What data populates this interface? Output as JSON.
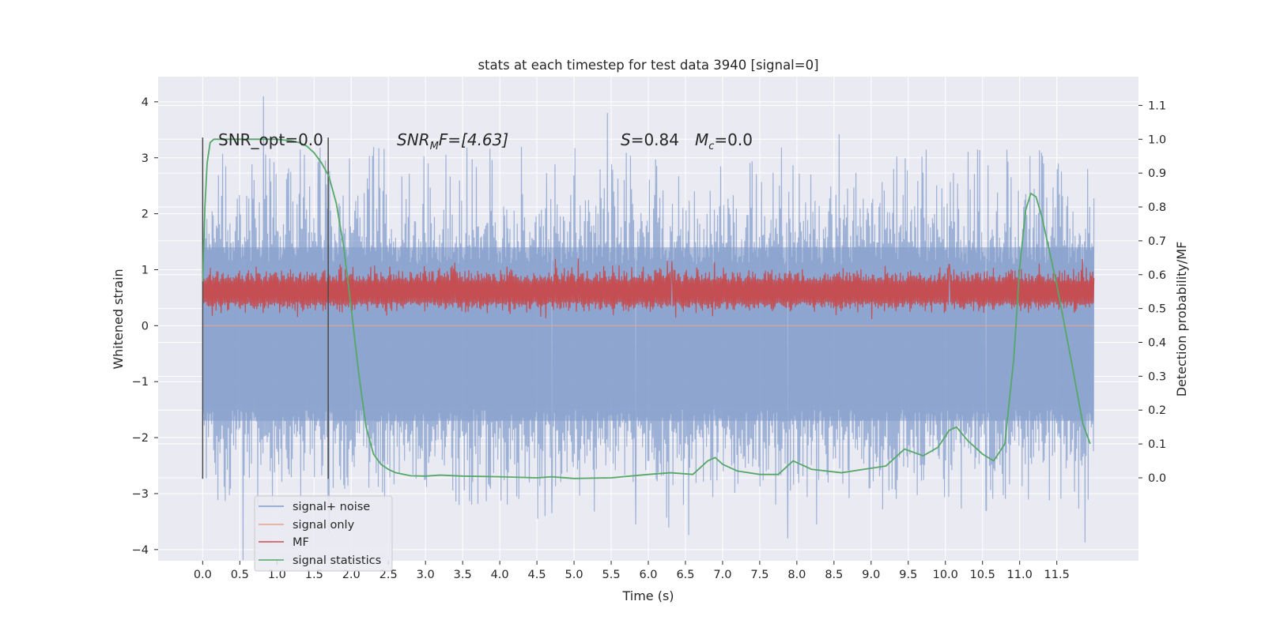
{
  "chart_data": {
    "type": "line",
    "title": "stats at each timestep for test data 3940 [signal=0]",
    "xlabel": "Time (s)",
    "ylabel": "Whitened strain",
    "y2label": "Detection probability/MF",
    "xlim": [
      -0.6,
      12.6
    ],
    "ylim": [
      -4.2,
      4.45
    ],
    "y2lim": [
      -0.245,
      1.185
    ],
    "x_ticks": [
      "0.0",
      "0.5",
      "1.0",
      "1.5",
      "2.0",
      "2.5",
      "3.0",
      "3.5",
      "4.0",
      "4.5",
      "5.0",
      "5.5",
      "6.0",
      "6.5",
      "7.0",
      "7.5",
      "8.0",
      "8.5",
      "9.0",
      "9.5",
      "10.0",
      "10.5",
      "11.0",
      "11.5"
    ],
    "y_ticks": [
      "4",
      "3",
      "2",
      "1",
      "0",
      "−1",
      "−2",
      "−3",
      "−4"
    ],
    "y2_ticks": [
      "1.1",
      "1.0",
      "0.9",
      "0.8",
      "0.7",
      "0.6",
      "0.5",
      "0.4",
      "0.3",
      "0.2",
      "0.1",
      "0.0"
    ],
    "grid": true,
    "annotations": {
      "snr_opt": "SNR_opt=0.0",
      "snr_mf_sym": "SNR",
      "snr_mf_sub": "M",
      "snr_mf_rest": "F=[4.63]",
      "s_sym": "S",
      "s_val": "=0.84",
      "mc_sym": "M",
      "mc_sub": "c",
      "mc_val": "=0.0"
    },
    "vertical_lines_x": [
      0.0,
      1.69
    ],
    "legend": {
      "placement": "lower-left",
      "entries": [
        "signal+ noise",
        "signal only",
        "MF",
        "signal statistics"
      ]
    },
    "series": [
      {
        "name": "signal+ noise",
        "color": "#7f9bcb",
        "axis": "left",
        "x_range": [
          0.0,
          12.0
        ],
        "band_core": [
          -1.7,
          1.4
        ],
        "typical_peak_range": [
          -2.9,
          2.9
        ],
        "extremes": [
          {
            "x": 0.82,
            "y": 4.1
          },
          {
            "x": 5.45,
            "y": 3.8
          },
          {
            "x": 10.55,
            "y": 3.65
          },
          {
            "x": 7.88,
            "y": -3.8
          },
          {
            "x": 5.83,
            "y": -3.55
          },
          {
            "x": 10.55,
            "y": -3.3
          },
          {
            "x": 4.7,
            "y": -3.35
          }
        ]
      },
      {
        "name": "signal only",
        "color": "#e8a58a",
        "axis": "left",
        "x": [
          0.0,
          12.0
        ],
        "y": [
          0.0,
          0.0
        ]
      },
      {
        "name": "MF",
        "color": "#c44e52",
        "axis": "right",
        "x_range": [
          0.0,
          12.0
        ],
        "typical_range": [
          0.5,
          0.6
        ],
        "peaks": [
          {
            "x": 6.32,
            "y": 0.64
          },
          {
            "x": 10.05,
            "y": 0.63
          },
          {
            "x": 0.1,
            "y": 0.62
          }
        ]
      },
      {
        "name": "signal statistics",
        "color": "#55a868",
        "axis": "right",
        "x": [
          0.0,
          0.03,
          0.06,
          0.1,
          0.15,
          0.2,
          0.3,
          0.5,
          0.8,
          1.0,
          1.2,
          1.3,
          1.4,
          1.5,
          1.6,
          1.7,
          1.8,
          1.9,
          2.0,
          2.1,
          2.2,
          2.3,
          2.4,
          2.5,
          2.6,
          2.8,
          3.0,
          3.2,
          3.5,
          4.0,
          4.5,
          4.7,
          5.0,
          5.5,
          6.0,
          6.3,
          6.6,
          6.8,
          6.9,
          7.0,
          7.2,
          7.5,
          7.75,
          7.95,
          8.2,
          8.6,
          8.9,
          9.2,
          9.45,
          9.7,
          9.9,
          10.05,
          10.15,
          10.3,
          10.5,
          10.65,
          10.8,
          10.92,
          11.0,
          11.08,
          11.15,
          11.22,
          11.3,
          11.5,
          11.7,
          11.85,
          11.95
        ],
        "y": [
          0.58,
          0.8,
          0.93,
          0.99,
          1.0,
          1.0,
          1.0,
          1.0,
          1.0,
          1.0,
          0.995,
          0.99,
          0.98,
          0.96,
          0.93,
          0.89,
          0.81,
          0.68,
          0.5,
          0.31,
          0.15,
          0.07,
          0.04,
          0.025,
          0.015,
          0.006,
          0.005,
          0.008,
          0.005,
          0.003,
          0.0,
          0.003,
          -0.002,
          0.0,
          0.01,
          0.015,
          0.01,
          0.05,
          0.06,
          0.04,
          0.02,
          0.01,
          0.01,
          0.05,
          0.025,
          0.015,
          0.025,
          0.035,
          0.085,
          0.065,
          0.09,
          0.14,
          0.15,
          0.11,
          0.07,
          0.05,
          0.1,
          0.35,
          0.62,
          0.79,
          0.84,
          0.83,
          0.77,
          0.57,
          0.34,
          0.16,
          0.1
        ]
      }
    ]
  }
}
